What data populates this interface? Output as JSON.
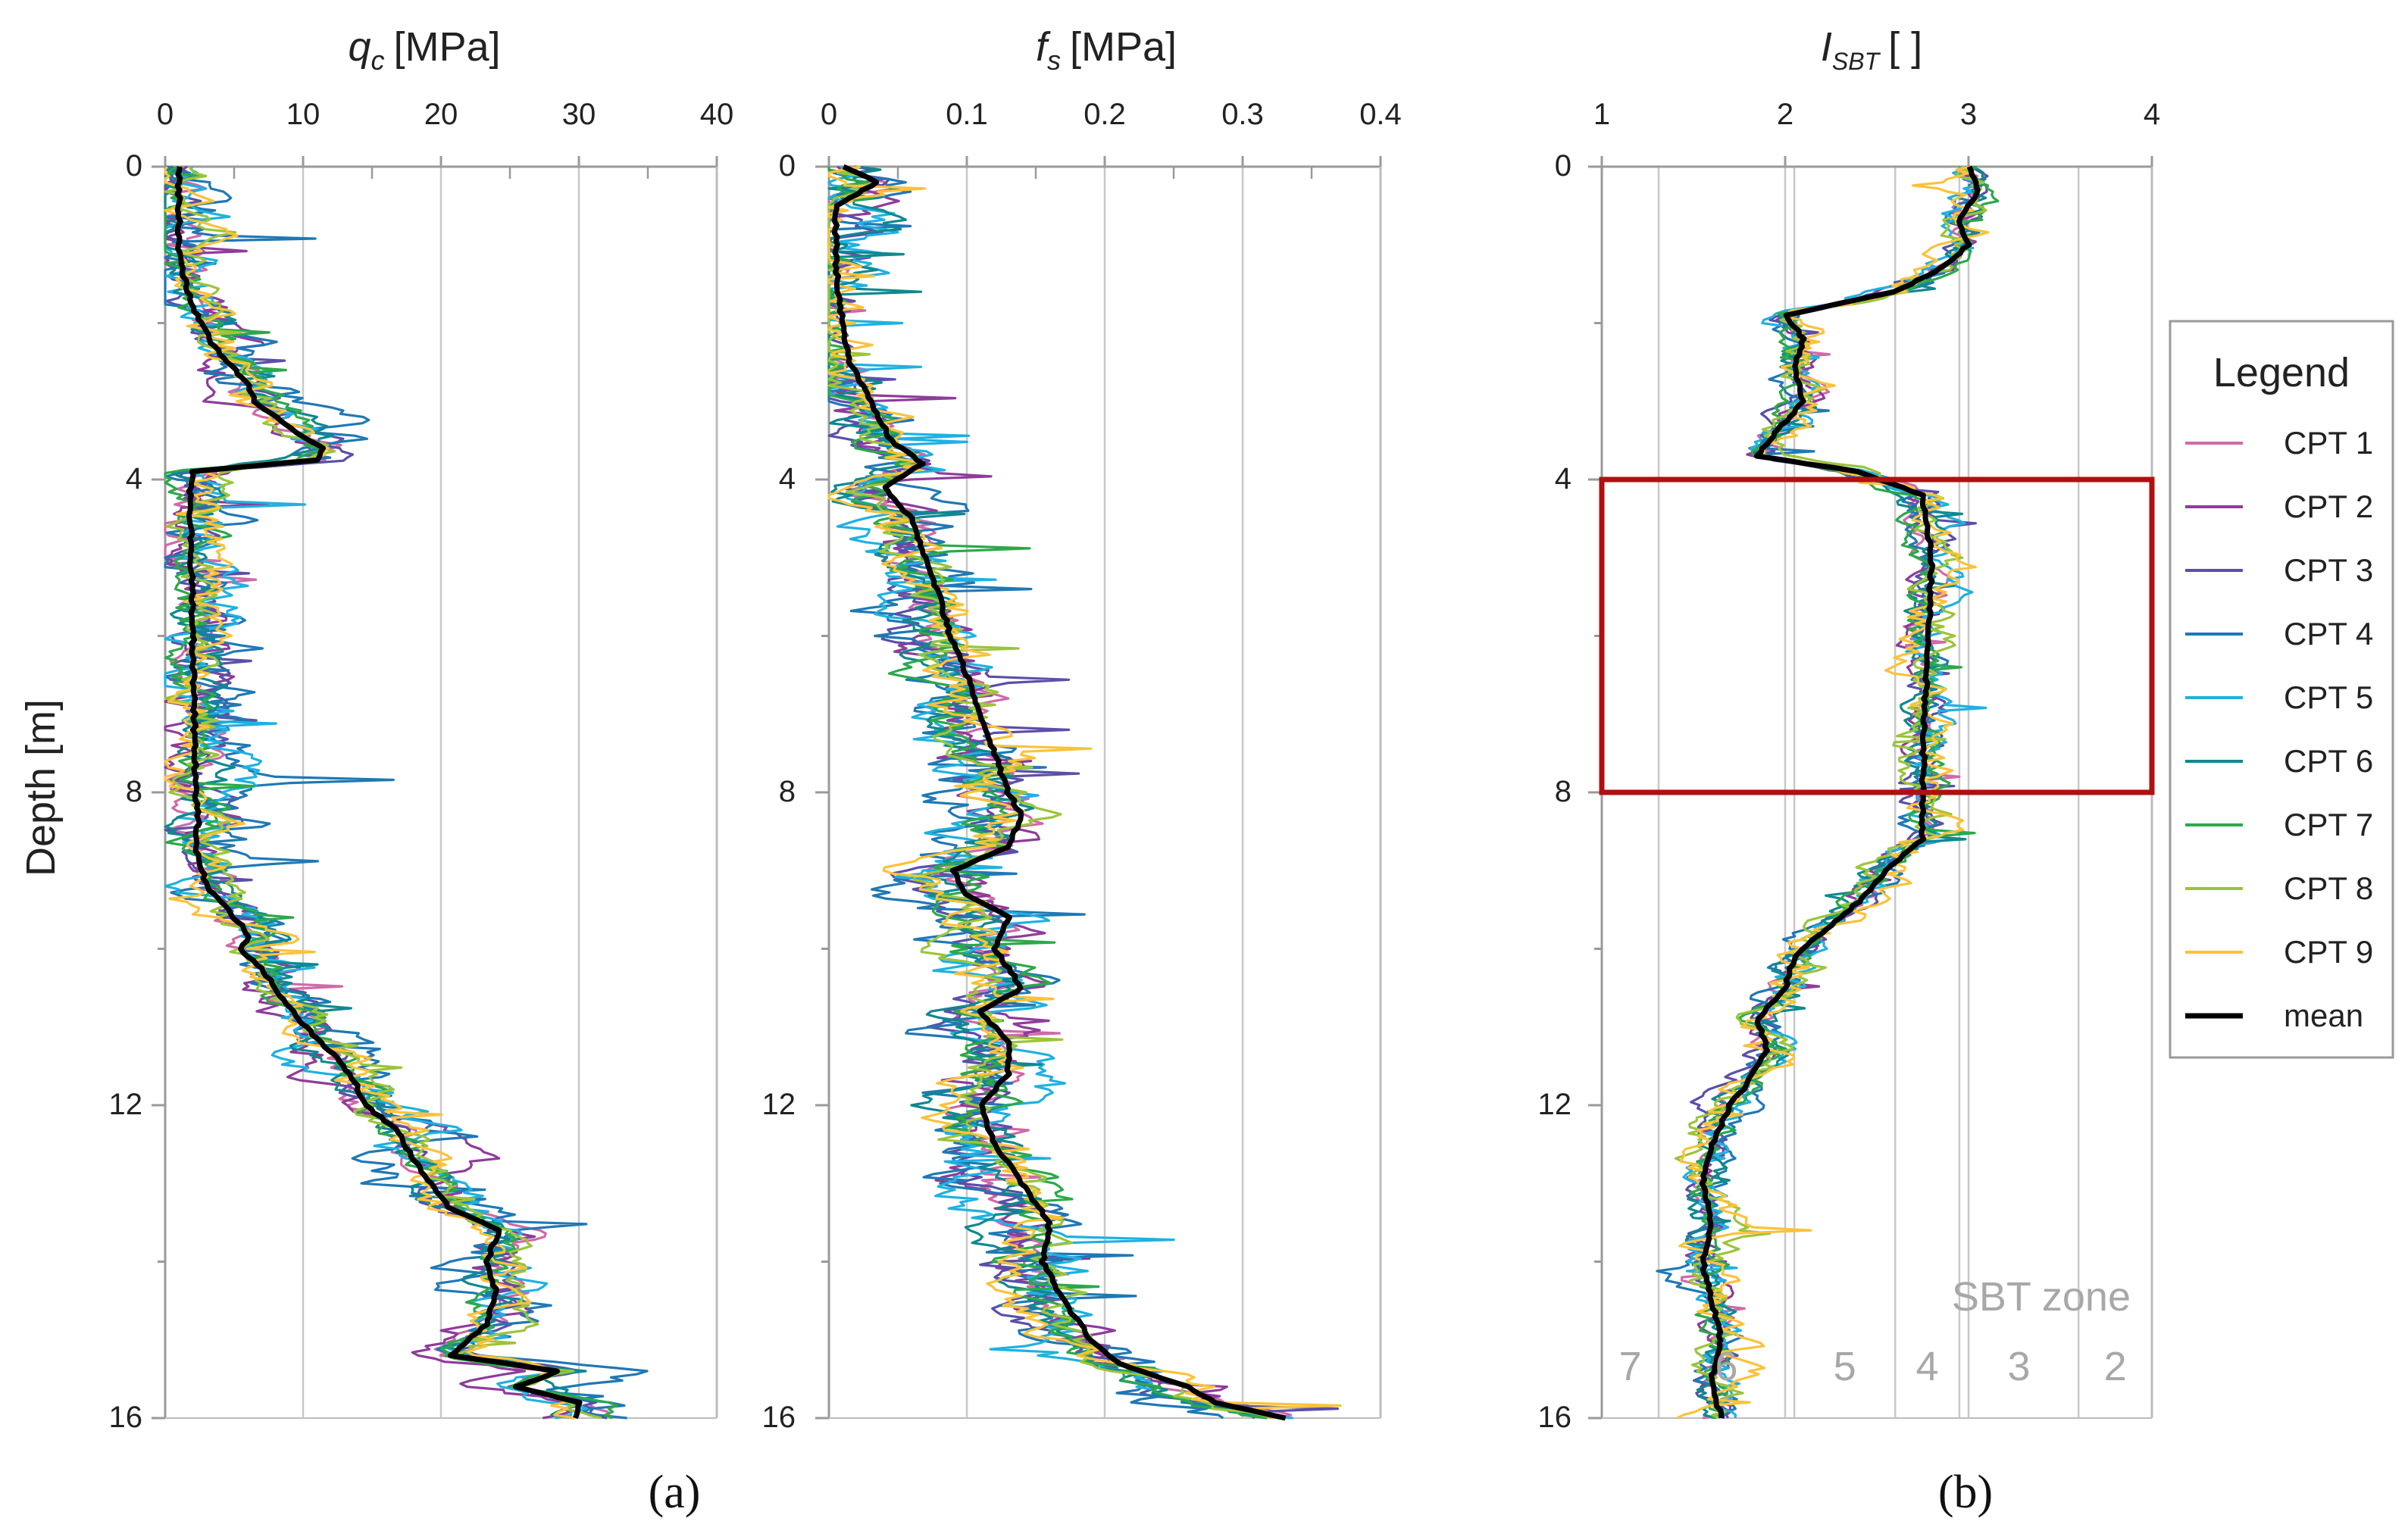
{
  "figure_labels": {
    "panel_a": "(a)",
    "panel_b": "(b)"
  },
  "colors": {
    "CPT 1": "#cf6aa8",
    "CPT 2": "#8e3c9a",
    "CPT 3": "#5a4fa8",
    "CPT 4": "#1f78b4",
    "CPT 5": "#1fb1e0",
    "CPT 6": "#10888f",
    "CPT 7": "#2ca84a",
    "CPT 8": "#9cc43a",
    "CPT 9": "#fbc23a",
    "mean": "#000000",
    "highlight": "#b01010",
    "grid": "#c8c8c8"
  },
  "legend": {
    "title": "Legend",
    "entries": [
      "CPT 1",
      "CPT 2",
      "CPT 3",
      "CPT 4",
      "CPT 5",
      "CPT 6",
      "CPT 7",
      "CPT 8",
      "CPT 9",
      "mean"
    ]
  },
  "sbt": {
    "title": "SBT zone",
    "zones": [
      {
        "label": "7",
        "from": 1.0,
        "to": 1.31
      },
      {
        "label": "6",
        "from": 1.31,
        "to": 2.05
      },
      {
        "label": "5",
        "from": 2.05,
        "to": 2.6
      },
      {
        "label": "4",
        "from": 2.6,
        "to": 2.95
      },
      {
        "label": "3",
        "from": 2.95,
        "to": 3.6
      },
      {
        "label": "2",
        "from": 3.6,
        "to": 4.0
      }
    ]
  },
  "chart_data": [
    {
      "type": "line",
      "panel": "qc",
      "title_main": "q",
      "title_sub": "c",
      "title_unit": "[MPa]",
      "ylabel": "Depth [m]",
      "xlim": [
        0,
        40
      ],
      "xticks": [
        0,
        10,
        20,
        30,
        40
      ],
      "ylim": [
        0,
        16
      ],
      "yticks": [
        0,
        4,
        8,
        12,
        16
      ],
      "mean": {
        "depth": [
          0.0,
          0.5,
          1.0,
          1.3,
          1.5,
          1.8,
          2.0,
          2.3,
          2.5,
          2.8,
          3.0,
          3.2,
          3.4,
          3.6,
          3.75,
          3.9,
          4.2,
          5.0,
          6.0,
          7.0,
          8.0,
          8.4,
          8.7,
          9.2,
          9.5,
          9.7,
          9.85,
          10.0,
          10.3,
          10.6,
          10.9,
          11.2,
          11.4,
          11.7,
          12.0,
          12.3,
          12.6,
          13.0,
          13.3,
          13.6,
          14.0,
          14.4,
          14.8,
          15.2,
          15.4,
          15.6,
          15.8,
          16.0
        ],
        "value": [
          1.0,
          1.0,
          1.0,
          1.2,
          1.5,
          2.0,
          2.6,
          3.5,
          4.6,
          6.0,
          6.5,
          8.0,
          9.5,
          11.5,
          11.0,
          2.0,
          1.8,
          1.9,
          2.0,
          2.1,
          2.2,
          2.4,
          2.2,
          3.0,
          4.5,
          5.5,
          6.0,
          5.5,
          7.2,
          8.3,
          9.7,
          11.3,
          12.5,
          13.8,
          14.5,
          16.7,
          17.7,
          19.2,
          20.5,
          24.2,
          23.3,
          24.0,
          23.3,
          20.8,
          28.5,
          25.5,
          30.0,
          29.8
        ]
      },
      "cpts": [
        {
          "name": "CPT 1",
          "max_dev": 4.0
        },
        {
          "name": "CPT 2",
          "max_dev": 5.5
        },
        {
          "name": "CPT 3",
          "max_dev": 4.5
        },
        {
          "name": "CPT 4",
          "max_dev": 9.0
        },
        {
          "name": "CPT 5",
          "max_dev": 6.5
        },
        {
          "name": "CPT 6",
          "max_dev": 4.5
        },
        {
          "name": "CPT 7",
          "max_dev": 4.0
        },
        {
          "name": "CPT 8",
          "max_dev": 4.0
        },
        {
          "name": "CPT 9",
          "max_dev": 5.0
        }
      ]
    },
    {
      "type": "line",
      "panel": "fs",
      "title_main": "f",
      "title_sub": "s",
      "title_unit": "[MPa]",
      "xlim": [
        0,
        0.4
      ],
      "xticks": [
        0,
        0.1,
        0.2,
        0.3,
        0.4
      ],
      "ylim": [
        0,
        16
      ],
      "yticks": [
        0,
        4,
        8,
        12,
        16
      ],
      "mean": {
        "depth": [
          0.0,
          0.2,
          0.5,
          1.0,
          1.5,
          2.0,
          2.5,
          3.0,
          3.5,
          3.8,
          4.1,
          4.5,
          5.0,
          5.5,
          6.0,
          6.5,
          7.0,
          7.5,
          8.0,
          8.3,
          8.7,
          9.0,
          9.3,
          9.6,
          10.0,
          10.5,
          10.8,
          11.2,
          11.6,
          12.0,
          12.5,
          13.0,
          13.5,
          14.0,
          14.5,
          15.0,
          15.3,
          15.6,
          15.8,
          16.0
        ],
        "value": [
          0.01,
          0.035,
          0.005,
          0.005,
          0.006,
          0.01,
          0.015,
          0.03,
          0.045,
          0.068,
          0.04,
          0.06,
          0.07,
          0.08,
          0.088,
          0.1,
          0.11,
          0.12,
          0.13,
          0.14,
          0.13,
          0.09,
          0.1,
          0.13,
          0.12,
          0.14,
          0.11,
          0.13,
          0.13,
          0.11,
          0.12,
          0.14,
          0.16,
          0.155,
          0.17,
          0.19,
          0.21,
          0.26,
          0.28,
          0.33
        ]
      },
      "cpts": [
        {
          "name": "CPT 1",
          "max_dev": 0.05
        },
        {
          "name": "CPT 2",
          "max_dev": 0.07
        },
        {
          "name": "CPT 3",
          "max_dev": 0.06
        },
        {
          "name": "CPT 4",
          "max_dev": 0.09
        },
        {
          "name": "CPT 5",
          "max_dev": 0.08
        },
        {
          "name": "CPT 6",
          "max_dev": 0.06
        },
        {
          "name": "CPT 7",
          "max_dev": 0.06
        },
        {
          "name": "CPT 8",
          "max_dev": 0.05
        },
        {
          "name": "CPT 9",
          "max_dev": 0.06
        }
      ]
    },
    {
      "type": "line",
      "panel": "isbt",
      "title_main": "I",
      "title_sub": "SBT",
      "title_unit": "[ ]",
      "xlim": [
        1,
        4
      ],
      "xticks": [
        1,
        2,
        3,
        4
      ],
      "ylim": [
        0,
        16
      ],
      "yticks": [
        0,
        4,
        8,
        12,
        16
      ],
      "highlight_depth": [
        4,
        8
      ],
      "mean": {
        "depth": [
          0.0,
          0.3,
          0.7,
          1.0,
          1.3,
          1.6,
          1.9,
          2.2,
          2.6,
          3.0,
          3.4,
          3.7,
          3.9,
          4.2,
          5.0,
          6.0,
          7.0,
          8.0,
          8.6,
          9.0,
          9.4,
          9.8,
          10.1,
          10.5,
          10.9,
          11.3,
          11.7,
          12.0,
          12.5,
          13.0,
          13.5,
          14.0,
          14.5,
          15.0,
          15.5,
          16.0
        ],
        "value": [
          3.0,
          3.05,
          2.95,
          3.0,
          2.85,
          2.6,
          2.0,
          2.1,
          2.05,
          2.1,
          1.95,
          1.85,
          2.4,
          2.75,
          2.8,
          2.78,
          2.76,
          2.75,
          2.75,
          2.55,
          2.4,
          2.2,
          2.05,
          2.0,
          1.85,
          1.9,
          1.8,
          1.7,
          1.6,
          1.55,
          1.6,
          1.55,
          1.6,
          1.65,
          1.6,
          1.65
        ]
      },
      "cpts": [
        {
          "name": "CPT 1",
          "max_dev": 0.18
        },
        {
          "name": "CPT 2",
          "max_dev": 0.2
        },
        {
          "name": "CPT 3",
          "max_dev": 0.22
        },
        {
          "name": "CPT 4",
          "max_dev": 0.25
        },
        {
          "name": "CPT 5",
          "max_dev": 0.3
        },
        {
          "name": "CPT 6",
          "max_dev": 0.2
        },
        {
          "name": "CPT 7",
          "max_dev": 0.22
        },
        {
          "name": "CPT 8",
          "max_dev": 0.28
        },
        {
          "name": "CPT 9",
          "max_dev": 0.35
        }
      ]
    }
  ]
}
